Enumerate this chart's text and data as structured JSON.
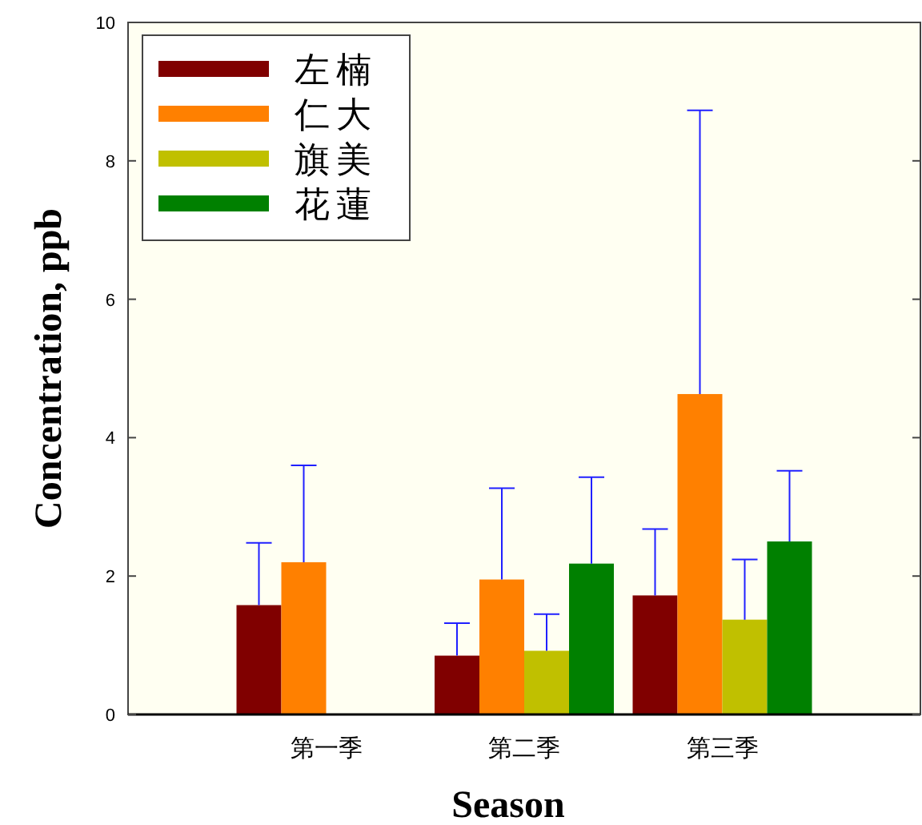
{
  "chart_data": {
    "type": "bar",
    "xlabel": "Season",
    "ylabel": "Concentration, ppb",
    "categories": [
      "第一季",
      "第二季",
      "第三季"
    ],
    "series": [
      {
        "name": "左楠",
        "color": "#800000",
        "values": [
          1.58,
          0.85,
          1.72
        ],
        "errors": [
          [
            1.58,
            2.48
          ],
          [
            0.85,
            1.32
          ],
          [
            1.72,
            2.68
          ]
        ]
      },
      {
        "name": "仁大",
        "color": "#ff8000",
        "values": [
          2.2,
          1.95,
          4.63
        ],
        "errors": [
          [
            2.2,
            3.6
          ],
          [
            1.95,
            3.27
          ],
          [
            4.63,
            8.73
          ]
        ]
      },
      {
        "name": "旗美",
        "color": "#c0c000",
        "values": [
          null,
          0.92,
          1.37
        ],
        "errors": [
          null,
          [
            0.92,
            1.45
          ],
          [
            1.37,
            2.24
          ]
        ]
      },
      {
        "name": "花蓮",
        "color": "#008000",
        "values": [
          null,
          2.18,
          2.5
        ],
        "errors": [
          null,
          [
            2.18,
            3.43
          ],
          [
            2.5,
            3.52
          ]
        ]
      }
    ],
    "ylim": [
      0,
      10
    ],
    "yticks": [
      0,
      2,
      4,
      6,
      8,
      10
    ],
    "grid": false,
    "legend": "top left"
  }
}
